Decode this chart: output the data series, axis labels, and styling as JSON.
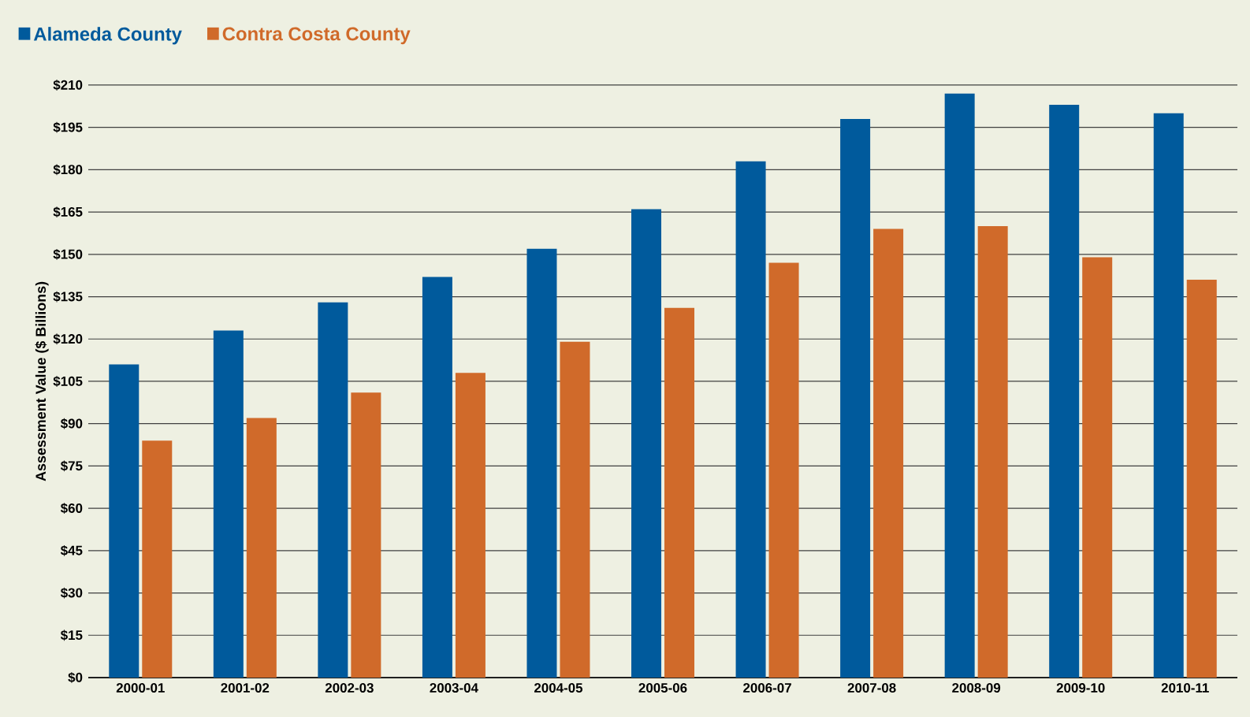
{
  "chart_data": {
    "type": "bar",
    "ylabel": "Assessment Value ($ Billions)",
    "categories": [
      "2000-01",
      "2001-02",
      "2002-03",
      "2003-04",
      "2004-05",
      "2005-06",
      "2006-07",
      "2007-08",
      "2008-09",
      "2009-10",
      "2010-11"
    ],
    "series": [
      {
        "name": "Alameda County",
        "color": "#005a9c",
        "values": [
          111,
          123,
          133,
          142,
          152,
          166,
          183,
          198,
          207,
          203,
          200
        ]
      },
      {
        "name": "Contra Costa County",
        "color": "#d06a2a",
        "values": [
          84,
          92,
          101,
          108,
          119,
          131,
          147,
          159,
          160,
          149,
          141
        ]
      }
    ],
    "ylim": [
      0,
      210
    ],
    "yticks": [
      {
        "value": 0,
        "label": "$0"
      },
      {
        "value": 15,
        "label": "$15"
      },
      {
        "value": 30,
        "label": "$30"
      },
      {
        "value": 45,
        "label": "$45"
      },
      {
        "value": 60,
        "label": "$60"
      },
      {
        "value": 75,
        "label": "$75"
      },
      {
        "value": 90,
        "label": "$90"
      },
      {
        "value": 105,
        "label": "$105"
      },
      {
        "value": 120,
        "label": "$120"
      },
      {
        "value": 135,
        "label": "$135"
      },
      {
        "value": 150,
        "label": "$150"
      },
      {
        "value": 165,
        "label": "$165"
      },
      {
        "value": 180,
        "label": "$180"
      },
      {
        "value": 195,
        "label": "$195"
      },
      {
        "value": 210,
        "label": "$210"
      }
    ],
    "grid": "y",
    "legend": "top left"
  }
}
